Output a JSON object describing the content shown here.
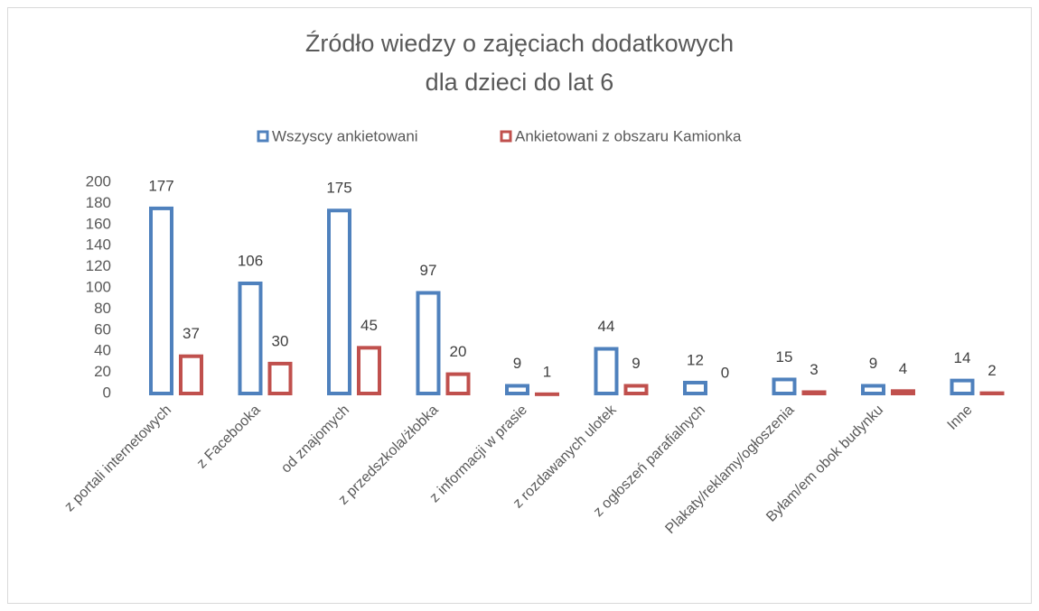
{
  "chart_data": {
    "type": "bar",
    "title": [
      "Źródło wiedzy o zajęciach dodatkowych",
      "dla dzieci do lat 6"
    ],
    "categories": [
      "z portali internetowych",
      "z Facebooka",
      "od znajomych",
      "z przedszkola/żłobka",
      "z informacji w prasie",
      "z rozdawanych ulotek",
      "z ogłoszeń parafialnych",
      "Plakaty/reklamy/ogłoszenia",
      "Byłam/em obok budynku",
      "Inne"
    ],
    "series": [
      {
        "name": "Wszyscy ankietowani",
        "color": "#4f81bd",
        "values": [
          177,
          106,
          175,
          97,
          9,
          44,
          12,
          15,
          9,
          14
        ]
      },
      {
        "name": "Ankietowani z obszaru Kamionka",
        "color": "#c0504d",
        "values": [
          37,
          30,
          45,
          20,
          1,
          9,
          0,
          3,
          4,
          2
        ]
      }
    ],
    "ylim": [
      0,
      200
    ],
    "yticks": [
      0,
      20,
      40,
      60,
      80,
      100,
      120,
      140,
      160,
      180,
      200
    ],
    "grid": false,
    "legend": "top"
  }
}
